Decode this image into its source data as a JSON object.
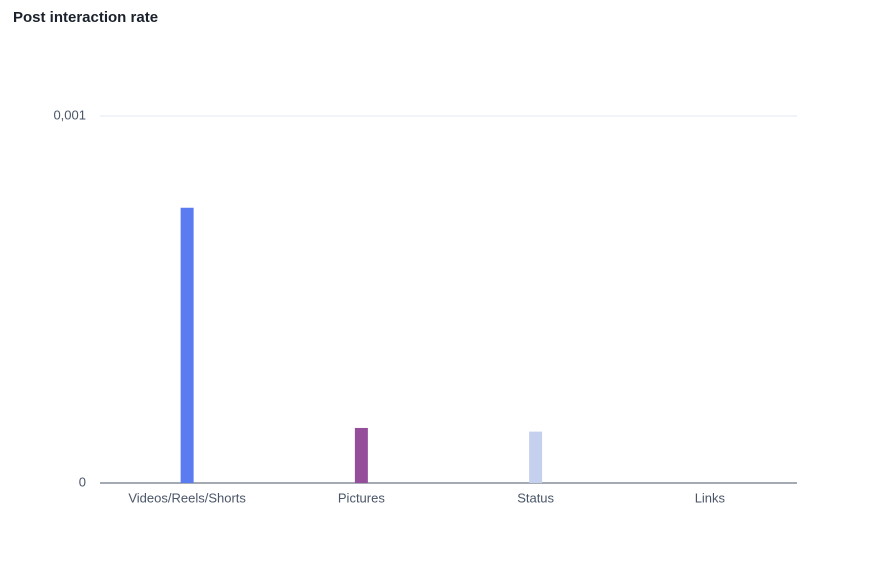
{
  "chart_data": {
    "type": "bar",
    "title": "Post interaction rate",
    "categories": [
      "Videos/Reels/Shorts",
      "Pictures",
      "Status",
      "Links"
    ],
    "values": [
      0.00075,
      0.00015,
      0.00014,
      0
    ],
    "colors": [
      "#5b7cf0",
      "#954f9a",
      "#c5d0ef",
      "#5b7cf0"
    ],
    "ylim": [
      0,
      0.001
    ],
    "yticks": [
      0,
      {
        "value": 0.001,
        "label": "0,001"
      }
    ],
    "grid": true
  }
}
